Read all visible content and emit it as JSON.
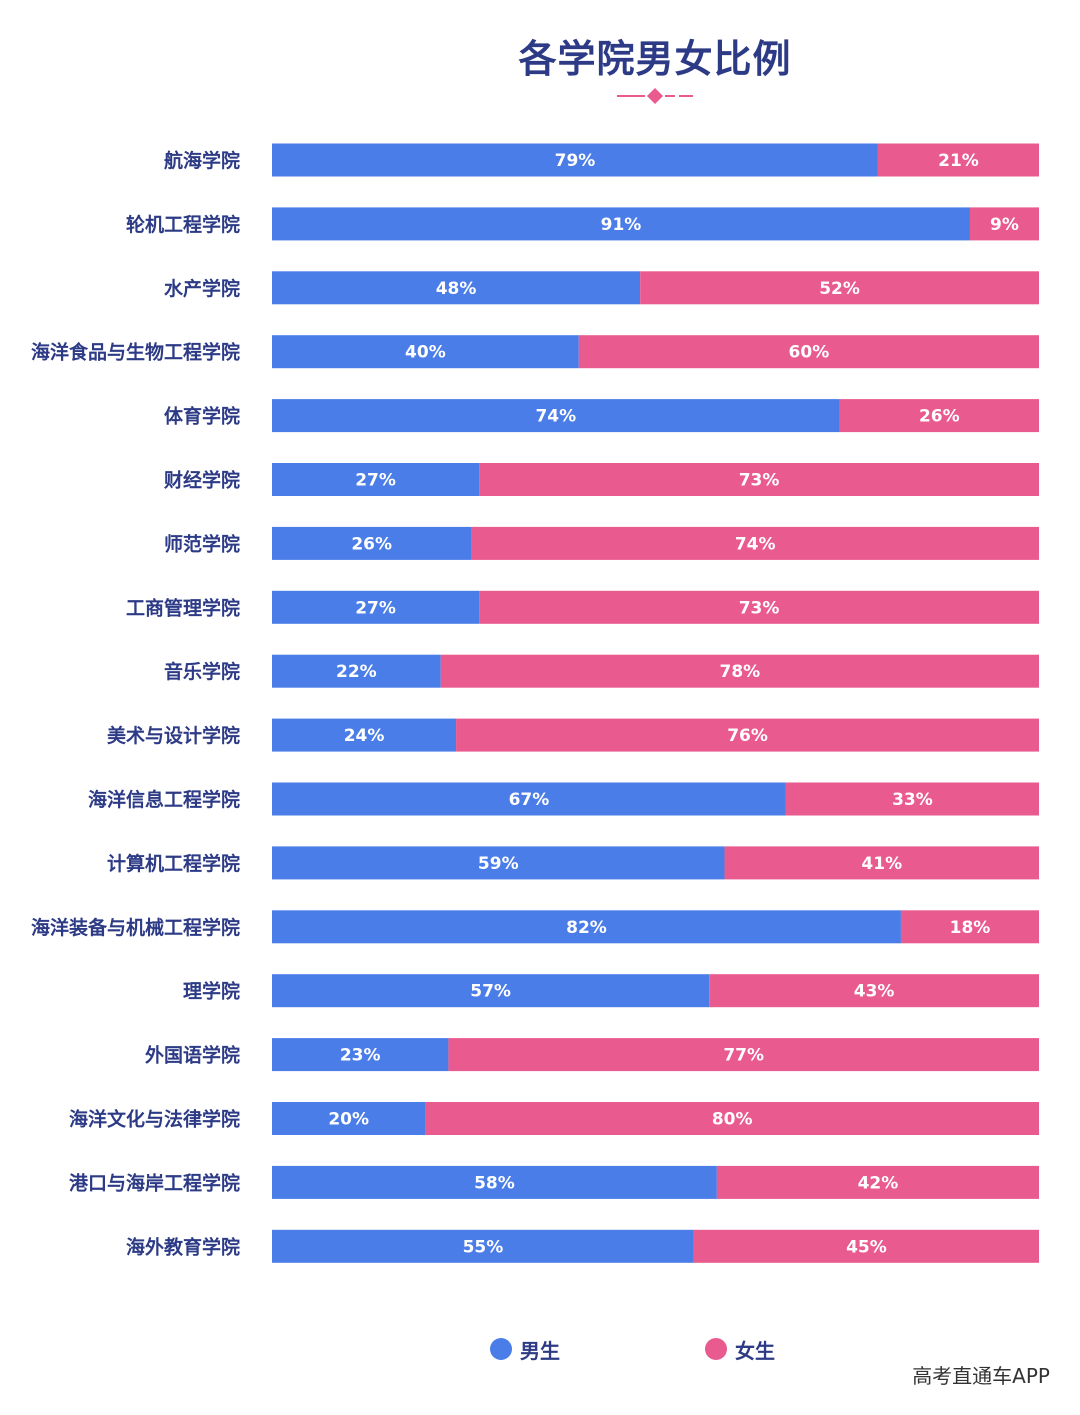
{
  "title": "各学院男女比例",
  "colors": {
    "male": "#4a7de8",
    "female": "#e95a8e",
    "label_text": "#2d3b86",
    "deco": "#e95a8e"
  },
  "legend": {
    "male": "男生",
    "female": "女生"
  },
  "watermark": "高考直通车APP",
  "chart_data": {
    "type": "bar",
    "orientation": "horizontal",
    "stacked": "percent",
    "title": "各学院男女比例",
    "xlim": [
      0,
      100
    ],
    "legend_position": "bottom",
    "grid": false,
    "categories": [
      "航海学院",
      "轮机工程学院",
      "水产学院",
      "海洋食品与生物工程学院",
      "体育学院",
      "财经学院",
      "师范学院",
      "工商管理学院",
      "音乐学院",
      "美术与设计学院",
      "海洋信息工程学院",
      "计算机工程学院",
      "海洋装备与机械工程学院",
      "理学院",
      "外国语学院",
      "海洋文化与法律学院",
      "港口与海岸工程学院",
      "海外教育学院"
    ],
    "series": [
      {
        "name": "男生",
        "values": [
          79,
          91,
          48,
          40,
          74,
          27,
          26,
          27,
          22,
          24,
          67,
          59,
          82,
          57,
          23,
          20,
          58,
          55
        ]
      },
      {
        "name": "女生",
        "values": [
          21,
          9,
          52,
          60,
          26,
          73,
          74,
          73,
          78,
          76,
          33,
          41,
          18,
          43,
          77,
          80,
          42,
          45
        ]
      }
    ]
  }
}
